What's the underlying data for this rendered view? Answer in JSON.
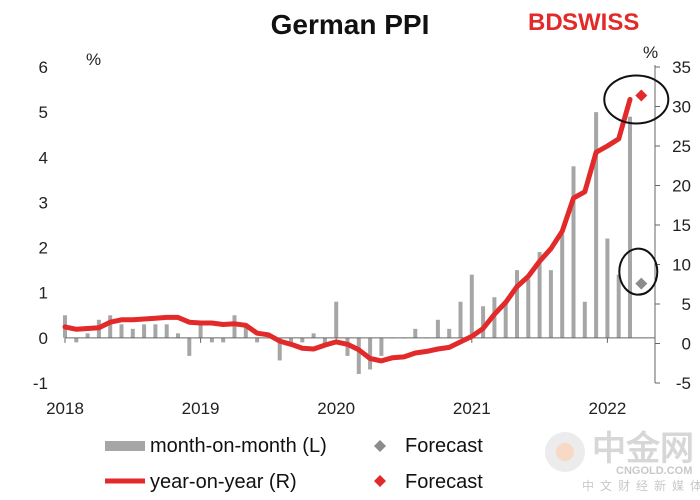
{
  "header": {
    "title": "German PPI"
  },
  "brand": {
    "part1": "BD",
    "part2": "SWISS"
  },
  "watermark": {
    "main": "中金网",
    "sub": "CNGOLD.COM",
    "tagline": "中文财经新媒体"
  },
  "colors": {
    "bar": "#a6a6a6",
    "line": "#e32a2a",
    "forecast_bar": "#8c8c8c",
    "forecast_line": "#e32a2a",
    "circle": "#111111"
  },
  "chart_data": {
    "type": "bar+line",
    "title": "German PPI",
    "left_axis": {
      "unit": "%",
      "ylim": [
        -1,
        6
      ],
      "ticks": [
        "-1",
        "0",
        "1",
        "2",
        "3",
        "4",
        "5",
        "6"
      ]
    },
    "right_axis": {
      "unit": "%",
      "ylim": [
        -5,
        35
      ],
      "ticks": [
        "-5",
        "0",
        "5",
        "10",
        "15",
        "20",
        "25",
        "30",
        "35"
      ]
    },
    "x_axis": {
      "ticks": [
        "2018",
        "2019",
        "2020",
        "2021",
        "2022"
      ]
    },
    "months": [
      "2018-01",
      "2018-02",
      "2018-03",
      "2018-04",
      "2018-05",
      "2018-06",
      "2018-07",
      "2018-08",
      "2018-09",
      "2018-10",
      "2018-11",
      "2018-12",
      "2019-01",
      "2019-02",
      "2019-03",
      "2019-04",
      "2019-05",
      "2019-06",
      "2019-07",
      "2019-08",
      "2019-09",
      "2019-10",
      "2019-11",
      "2019-12",
      "2020-01",
      "2020-02",
      "2020-03",
      "2020-04",
      "2020-05",
      "2020-06",
      "2020-07",
      "2020-08",
      "2020-09",
      "2020-10",
      "2020-11",
      "2020-12",
      "2021-01",
      "2021-02",
      "2021-03",
      "2021-04",
      "2021-05",
      "2021-06",
      "2021-07",
      "2021-08",
      "2021-09",
      "2021-10",
      "2021-11",
      "2021-12",
      "2022-01",
      "2022-02",
      "2022-03"
    ],
    "series": [
      {
        "name": "month-on-month (L)",
        "axis": "left",
        "kind": "bar",
        "values": [
          0.5,
          -0.1,
          0.1,
          0.4,
          0.5,
          0.3,
          0.2,
          0.3,
          0.3,
          0.3,
          0.1,
          -0.4,
          0.3,
          -0.1,
          -0.1,
          0.5,
          0.3,
          -0.1,
          0.0,
          -0.5,
          -0.1,
          -0.1,
          0.1,
          -0.2,
          0.8,
          -0.4,
          -0.8,
          -0.7,
          -0.4,
          0.0,
          0.0,
          0.2,
          0.0,
          0.4,
          0.2,
          0.8,
          1.4,
          0.7,
          0.9,
          0.8,
          1.5,
          1.3,
          1.9,
          1.5,
          2.3,
          3.8,
          0.8,
          5.0,
          2.2,
          1.4,
          4.9
        ]
      },
      {
        "name": "year-on-year (R)",
        "axis": "right",
        "kind": "line",
        "values": [
          2.1,
          1.8,
          1.9,
          2.0,
          2.7,
          3.0,
          3.0,
          3.1,
          3.2,
          3.3,
          3.3,
          2.7,
          2.6,
          2.6,
          2.4,
          2.5,
          2.3,
          1.3,
          1.1,
          0.3,
          -0.1,
          -0.6,
          -0.7,
          -0.2,
          0.2,
          -0.1,
          -0.8,
          -1.9,
          -2.2,
          -1.8,
          -1.7,
          -1.2,
          -1.0,
          -0.7,
          -0.5,
          0.2,
          0.9,
          1.9,
          3.7,
          5.2,
          7.2,
          8.5,
          10.4,
          12.0,
          14.2,
          18.4,
          19.2,
          24.2,
          25.0,
          25.9,
          30.9
        ]
      }
    ],
    "forecast": [
      {
        "name": "Forecast",
        "axis": "left",
        "marker": "diamond",
        "month": "2022-04",
        "value": 1.2
      },
      {
        "name": "Forecast",
        "axis": "right",
        "marker": "diamond",
        "month": "2022-04",
        "value": 31.4
      }
    ],
    "legend": {
      "placement": "bottom",
      "items": [
        "month-on-month (L)",
        "Forecast",
        "year-on-year (R)",
        "Forecast"
      ]
    }
  }
}
